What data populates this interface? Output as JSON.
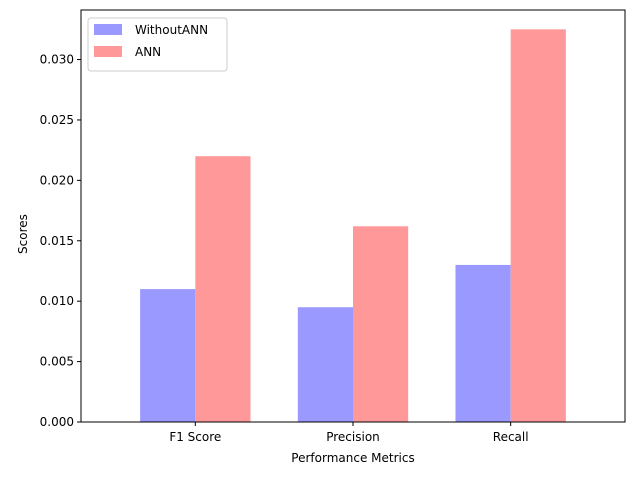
{
  "chart_data": {
    "type": "bar",
    "title": "",
    "xlabel": "Performance Metrics",
    "ylabel": "Scores",
    "categories": [
      "F1 Score",
      "Precision",
      "Recall"
    ],
    "series": [
      {
        "name": "WithoutANN",
        "values": [
          0.011,
          0.0095,
          0.013
        ],
        "color": "#9999ff"
      },
      {
        "name": "ANN",
        "values": [
          0.022,
          0.0162,
          0.0325
        ],
        "color": "#ff9999"
      }
    ],
    "ylim": [
      0,
      0.0341
    ],
    "yticks": [
      0.0,
      0.005,
      0.01,
      0.015,
      0.02,
      0.025,
      0.03
    ],
    "ytick_labels": [
      "0.000",
      "0.005",
      "0.010",
      "0.015",
      "0.020",
      "0.025",
      "0.030"
    ],
    "grid": false,
    "legend_position": "top-left"
  }
}
